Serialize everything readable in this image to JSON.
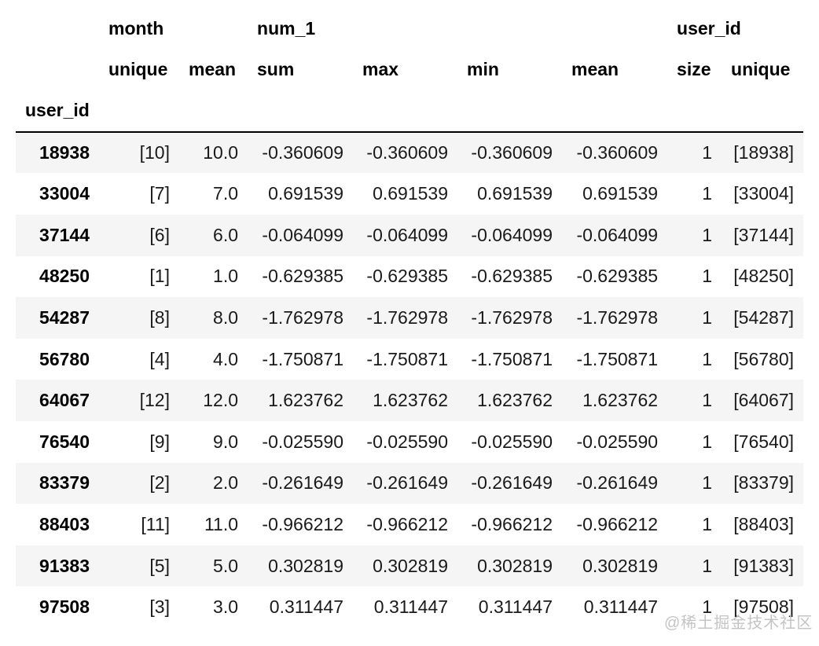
{
  "table": {
    "index_name": "user_id",
    "column_groups": [
      {
        "label": "month",
        "span": 2
      },
      {
        "label": "num_1",
        "span": 4
      },
      {
        "label": "user_id",
        "span": 2
      }
    ],
    "columns": [
      "unique",
      "mean",
      "sum",
      "max",
      "min",
      "mean",
      "size",
      "unique"
    ],
    "rows": [
      {
        "index": "18938",
        "cells": [
          "[10]",
          "10.0",
          "-0.360609",
          "-0.360609",
          "-0.360609",
          "-0.360609",
          "1",
          "[18938]"
        ]
      },
      {
        "index": "33004",
        "cells": [
          "[7]",
          "7.0",
          "0.691539",
          "0.691539",
          "0.691539",
          "0.691539",
          "1",
          "[33004]"
        ]
      },
      {
        "index": "37144",
        "cells": [
          "[6]",
          "6.0",
          "-0.064099",
          "-0.064099",
          "-0.064099",
          "-0.064099",
          "1",
          "[37144]"
        ]
      },
      {
        "index": "48250",
        "cells": [
          "[1]",
          "1.0",
          "-0.629385",
          "-0.629385",
          "-0.629385",
          "-0.629385",
          "1",
          "[48250]"
        ]
      },
      {
        "index": "54287",
        "cells": [
          "[8]",
          "8.0",
          "-1.762978",
          "-1.762978",
          "-1.762978",
          "-1.762978",
          "1",
          "[54287]"
        ]
      },
      {
        "index": "56780",
        "cells": [
          "[4]",
          "4.0",
          "-1.750871",
          "-1.750871",
          "-1.750871",
          "-1.750871",
          "1",
          "[56780]"
        ]
      },
      {
        "index": "64067",
        "cells": [
          "[12]",
          "12.0",
          "1.623762",
          "1.623762",
          "1.623762",
          "1.623762",
          "1",
          "[64067]"
        ]
      },
      {
        "index": "76540",
        "cells": [
          "[9]",
          "9.0",
          "-0.025590",
          "-0.025590",
          "-0.025590",
          "-0.025590",
          "1",
          "[76540]"
        ]
      },
      {
        "index": "83379",
        "cells": [
          "[2]",
          "2.0",
          "-0.261649",
          "-0.261649",
          "-0.261649",
          "-0.261649",
          "1",
          "[83379]"
        ]
      },
      {
        "index": "88403",
        "cells": [
          "[11]",
          "11.0",
          "-0.966212",
          "-0.966212",
          "-0.966212",
          "-0.966212",
          "1",
          "[88403]"
        ]
      },
      {
        "index": "91383",
        "cells": [
          "[5]",
          "5.0",
          "0.302819",
          "0.302819",
          "0.302819",
          "0.302819",
          "1",
          "[91383]"
        ]
      },
      {
        "index": "97508",
        "cells": [
          "[3]",
          "3.0",
          "0.311447",
          "0.311447",
          "0.311447",
          "0.311447",
          "1",
          "[97508]"
        ]
      }
    ]
  },
  "watermark": {
    "text": "@稀土掘金技术社区"
  },
  "colors": {
    "row_stripe": "#f5f5f5",
    "header_border": "#000000",
    "text": "#1a1a1a",
    "watermark": "#c4c4c4",
    "background": "#ffffff"
  }
}
